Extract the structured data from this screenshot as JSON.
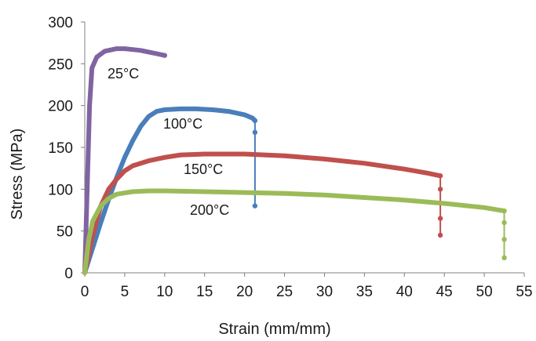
{
  "chart_data": {
    "type": "line",
    "title": "",
    "xlabel": "Strain (mm/mm)",
    "ylabel": "Stress (MPa)",
    "xlim": [
      0,
      55
    ],
    "ylim": [
      0,
      300
    ],
    "xticks": [
      0,
      5,
      10,
      15,
      20,
      25,
      30,
      35,
      40,
      45,
      50,
      55
    ],
    "yticks": [
      0,
      50,
      100,
      150,
      200,
      250,
      300
    ],
    "grid": false,
    "legend": "none",
    "series": [
      {
        "name": "25°C",
        "color": "#8064a2",
        "points": [
          [
            0,
            0
          ],
          [
            0.3,
            100
          ],
          [
            0.6,
            200
          ],
          [
            0.9,
            245
          ],
          [
            1.5,
            258
          ],
          [
            2.5,
            265
          ],
          [
            4,
            268
          ],
          [
            5,
            268
          ],
          [
            6,
            267
          ],
          [
            7,
            266
          ],
          [
            8,
            264
          ],
          [
            9,
            262
          ],
          [
            10,
            260
          ]
        ],
        "drop": null
      },
      {
        "name": "100°C",
        "color": "#4a7ebb",
        "points": [
          [
            0,
            0
          ],
          [
            1,
            30
          ],
          [
            2,
            60
          ],
          [
            3,
            88
          ],
          [
            4,
            114
          ],
          [
            5,
            138
          ],
          [
            6,
            158
          ],
          [
            7,
            175
          ],
          [
            8,
            187
          ],
          [
            9,
            193
          ],
          [
            10,
            195
          ],
          [
            12,
            196
          ],
          [
            14,
            196
          ],
          [
            16,
            195
          ],
          [
            18,
            193
          ],
          [
            20,
            189
          ],
          [
            21,
            185
          ],
          [
            21.3,
            182
          ]
        ],
        "drop": [
          [
            21.3,
            182
          ],
          [
            21.3,
            168
          ],
          [
            21.3,
            80
          ]
        ]
      },
      {
        "name": "150°C",
        "color": "#c0504d",
        "points": [
          [
            0,
            0
          ],
          [
            1,
            45
          ],
          [
            2,
            80
          ],
          [
            3,
            100
          ],
          [
            4,
            112
          ],
          [
            5,
            122
          ],
          [
            6,
            128
          ],
          [
            8,
            134
          ],
          [
            10,
            138
          ],
          [
            12,
            141
          ],
          [
            15,
            142
          ],
          [
            20,
            142
          ],
          [
            25,
            140
          ],
          [
            30,
            136
          ],
          [
            35,
            131
          ],
          [
            40,
            124
          ],
          [
            43,
            119
          ],
          [
            44.5,
            116
          ]
        ],
        "drop": [
          [
            44.5,
            116
          ],
          [
            44.5,
            100
          ],
          [
            44.5,
            65
          ],
          [
            44.5,
            45
          ]
        ]
      },
      {
        "name": "200°C",
        "color": "#9bbb59",
        "points": [
          [
            0,
            0
          ],
          [
            0.5,
            40
          ],
          [
            1,
            62
          ],
          [
            2,
            80
          ],
          [
            3,
            89
          ],
          [
            4,
            94
          ],
          [
            6,
            97
          ],
          [
            8,
            98
          ],
          [
            10,
            98
          ],
          [
            15,
            97
          ],
          [
            20,
            96
          ],
          [
            25,
            95
          ],
          [
            30,
            93
          ],
          [
            35,
            90
          ],
          [
            40,
            87
          ],
          [
            45,
            83
          ],
          [
            50,
            78
          ],
          [
            52.5,
            74
          ]
        ],
        "drop": [
          [
            52.5,
            74
          ],
          [
            52.5,
            60
          ],
          [
            52.5,
            40
          ],
          [
            52.5,
            18
          ]
        ]
      }
    ],
    "labels": [
      {
        "text": "25°C",
        "series": 0
      },
      {
        "text": "100°C",
        "series": 1
      },
      {
        "text": "150°C",
        "series": 2
      },
      {
        "text": "200°C",
        "series": 3
      }
    ]
  }
}
